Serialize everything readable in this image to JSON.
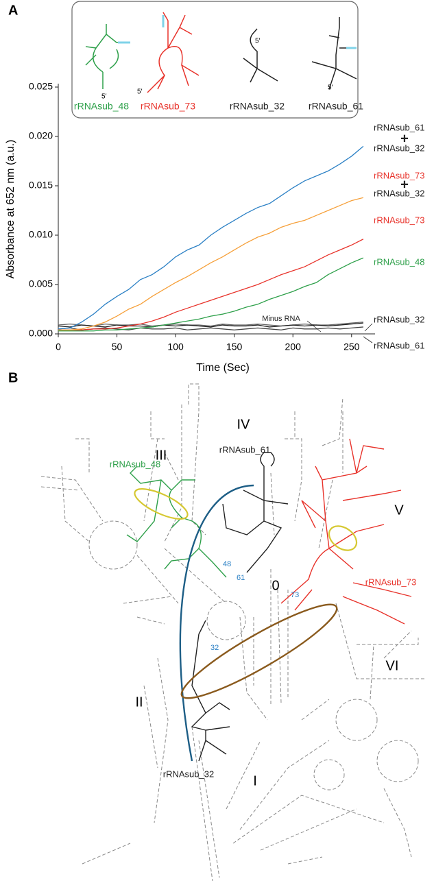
{
  "panel_labels": [
    "A",
    "B"
  ],
  "chart_data": {
    "type": "line",
    "x_label": "Time (Sec)",
    "y_label": "Absorbance at 652 nm (a.u.)",
    "x": [
      0,
      10,
      20,
      30,
      40,
      50,
      60,
      70,
      80,
      90,
      100,
      110,
      120,
      130,
      140,
      150,
      160,
      170,
      180,
      190,
      200,
      210,
      220,
      230,
      240,
      250,
      260
    ],
    "xlim": [
      0,
      270
    ],
    "xticks": [
      0,
      50,
      100,
      150,
      200,
      250
    ],
    "ylim": [
      0,
      0.025
    ],
    "yticks": [
      {
        "value": 0,
        "label": "0.000"
      },
      0.005,
      {
        "value": 0.01,
        "label": "0.010"
      },
      0.015,
      {
        "value": 0.02,
        "label": "0.020"
      },
      0.025
    ],
    "series": [
      {
        "name": [
          {
            "text": "rRNAsub_61",
            "color": "#222222"
          },
          {
            "text": "+",
            "color": "#222222"
          },
          {
            "text": "rRNAsub_32",
            "color": "#222222"
          }
        ],
        "color": "#2b80c5",
        "values": [
          0.0005,
          0.0006,
          0.0012,
          0.002,
          0.003,
          0.0038,
          0.0045,
          0.0055,
          0.006,
          0.0068,
          0.0078,
          0.0085,
          0.009,
          0.01,
          0.0108,
          0.0115,
          0.0122,
          0.0128,
          0.0132,
          0.014,
          0.0148,
          0.0155,
          0.016,
          0.0165,
          0.0172,
          0.018,
          0.019
        ]
      },
      {
        "name": [
          {
            "text": "rRNAsub_73",
            "color": "#e8332b"
          },
          {
            "text": "+",
            "color": "#222222"
          },
          {
            "text": "rRNAsub_32",
            "color": "#222222"
          }
        ],
        "color": "#f6a03a",
        "values": [
          0.0004,
          0.0004,
          0.0005,
          0.0008,
          0.0012,
          0.0018,
          0.0025,
          0.003,
          0.0038,
          0.0045,
          0.0052,
          0.0058,
          0.0065,
          0.0072,
          0.0078,
          0.0085,
          0.0092,
          0.0098,
          0.0102,
          0.0108,
          0.0112,
          0.0115,
          0.012,
          0.0125,
          0.013,
          0.0135,
          0.0138
        ]
      },
      {
        "name": [
          {
            "text": "rRNAsub_73",
            "color": "#e8332b"
          }
        ],
        "color": "#e8332b",
        "values": [
          0.0004,
          0.0004,
          0.0004,
          0.0005,
          0.0005,
          0.0006,
          0.0008,
          0.001,
          0.0013,
          0.0017,
          0.0022,
          0.0026,
          0.003,
          0.0034,
          0.0038,
          0.0042,
          0.0046,
          0.005,
          0.0055,
          0.006,
          0.0064,
          0.0068,
          0.0074,
          0.008,
          0.0085,
          0.009,
          0.0096
        ]
      },
      {
        "name": [
          {
            "text": "rRNAsub_48",
            "color": "#2ea04a"
          }
        ],
        "color": "#2ea04a",
        "values": [
          0.0003,
          0.0003,
          0.0003,
          0.0003,
          0.0004,
          0.0004,
          0.0005,
          0.0006,
          0.0007,
          0.0009,
          0.0011,
          0.0013,
          0.0015,
          0.0018,
          0.002,
          0.0023,
          0.0027,
          0.003,
          0.0035,
          0.0039,
          0.0043,
          0.0048,
          0.0052,
          0.006,
          0.0066,
          0.0072,
          0.0077
        ]
      },
      {
        "name": [
          {
            "text": "rRNAsub_32",
            "color": "#222222"
          }
        ],
        "color": "#222222",
        "values": [
          0.0008,
          0.0007,
          0.0009,
          0.0008,
          0.0007,
          0.0009,
          0.0008,
          0.0008,
          0.0007,
          0.0009,
          0.0008,
          0.0009,
          0.0008,
          0.0007,
          0.0009,
          0.0008,
          0.0008,
          0.0009,
          0.0007,
          0.0008,
          0.0009,
          0.0008,
          0.0009,
          0.0008,
          0.0009,
          0.001,
          0.0011
        ]
      },
      {
        "name": [
          {
            "text": "rRNAsub_61",
            "color": "#222222"
          }
        ],
        "color": "#444444",
        "values": [
          0.0005,
          0.0006,
          0.0004,
          0.0005,
          0.0006,
          0.0005,
          0.0004,
          0.0006,
          0.0005,
          0.0005,
          0.0006,
          0.0004,
          0.0005,
          0.0006,
          0.0005,
          0.0004,
          0.0005,
          0.0006,
          0.0005,
          0.0004,
          0.0006,
          0.0005,
          0.0005,
          0.0006,
          0.0005,
          0.0006,
          0.0007
        ]
      },
      {
        "name": [
          {
            "text": "Minus RNA",
            "color": "#222222"
          }
        ],
        "color": "#666666",
        "values": [
          0.0009,
          0.001,
          0.0009,
          0.0008,
          0.001,
          0.0009,
          0.0009,
          0.001,
          0.0008,
          0.0009,
          0.001,
          0.0009,
          0.0009,
          0.0008,
          0.001,
          0.0009,
          0.0009,
          0.001,
          0.0009,
          0.0008,
          0.0009,
          0.001,
          0.0009,
          0.0009,
          0.001,
          0.0011,
          0.0012
        ]
      }
    ],
    "inset": {
      "labels": [
        {
          "text": "rRNAsub_48",
          "color": "#2ea04a"
        },
        {
          "text": "rRNAsub_73",
          "color": "#e8332b"
        },
        {
          "text": "rRNAsub_32",
          "color": "#222222"
        },
        {
          "text": "rRNAsub_61",
          "color": "#222222"
        }
      ],
      "five_prime": "5′"
    }
  },
  "diagram": {
    "domains": [
      "III",
      "IV",
      "V",
      "VI",
      "0",
      "I",
      "II"
    ],
    "structures": [
      {
        "label": "rRNAsub_48",
        "color": "#2ea04a"
      },
      {
        "label": "rRNAsub_61",
        "color": "#222222"
      },
      {
        "label": "rRNAsub_73",
        "color": "#e8332b"
      },
      {
        "label": "rRNAsub_32",
        "color": "#222222"
      }
    ],
    "positions": [
      "48",
      "61",
      "73",
      "32"
    ]
  }
}
